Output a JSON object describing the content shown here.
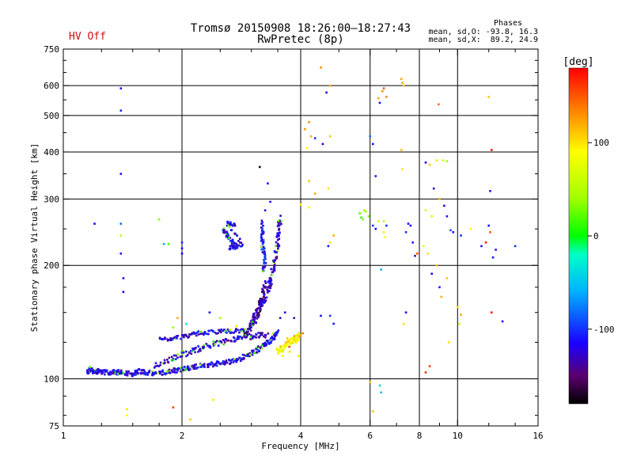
{
  "header": {
    "title_line1": "Tromsø 20150908 18:26:00—18:27:43",
    "title_line2": "RwPretec (8p)",
    "status": "HV Off",
    "status_color": "#d01010",
    "stats_title": "Phases",
    "stats_o": "mean, sd,O: -93.8, 16.3",
    "stats_x": "mean, sd,X:  89.2, 24.9"
  },
  "chart_data": {
    "type": "scatter",
    "xlabel": "Frequency [MHz]",
    "ylabel": "Stationary phase Virtual Height [km]",
    "x_scale": "log",
    "y_scale": "log",
    "xlim": [
      1,
      16
    ],
    "ylim": [
      75,
      750
    ],
    "x_ticks": [
      1,
      2,
      4,
      6,
      8,
      10,
      16
    ],
    "x_tick_labels": [
      "1",
      "2",
      "4",
      "6",
      "8",
      "10",
      "16"
    ],
    "y_ticks": [
      75,
      100,
      200,
      300,
      400,
      500,
      600,
      750
    ],
    "y_tick_labels": [
      "75",
      "100",
      "200",
      "300",
      "400",
      "500",
      "600",
      "750"
    ],
    "x_minor_ticks": [
      1.25,
      1.5,
      1.75,
      2.5,
      3,
      3.5,
      5,
      7,
      9,
      12,
      14
    ],
    "y_minor_ticks": [
      80,
      90,
      125,
      150,
      175,
      250,
      350,
      450,
      550,
      650,
      700
    ],
    "grid": true,
    "colorbar": {
      "label": "[deg]",
      "min": -180,
      "max": 180,
      "ticks": [
        100,
        0,
        -100
      ],
      "tick_labels": [
        "100",
        "0",
        "-100"
      ],
      "stops": [
        {
          "v": -180,
          "c": "#000000"
        },
        {
          "v": -150,
          "c": "#5a0070"
        },
        {
          "v": -115,
          "c": "#1a00ff"
        },
        {
          "v": -60,
          "c": "#00b0ff"
        },
        {
          "v": -20,
          "c": "#00ffc8"
        },
        {
          "v": 0,
          "c": "#00ff00"
        },
        {
          "v": 40,
          "c": "#a0ff00"
        },
        {
          "v": 90,
          "c": "#ffff00"
        },
        {
          "v": 130,
          "c": "#ff9000"
        },
        {
          "v": 180,
          "c": "#ff0000"
        }
      ]
    },
    "traces": [
      {
        "name": "",
        "points": [
          [
            1.15,
            104
          ],
          [
            1.17,
            106
          ],
          [
            1.2,
            104
          ],
          [
            1.23,
            105
          ],
          [
            1.27,
            104
          ],
          [
            1.32,
            104
          ],
          [
            1.37,
            104
          ],
          [
            1.42,
            104
          ],
          [
            1.5,
            103
          ],
          [
            1.55,
            105
          ],
          [
            1.62,
            104
          ],
          [
            1.7,
            103
          ],
          [
            1.8,
            104
          ],
          [
            1.9,
            105
          ],
          [
            2.0,
            106
          ],
          [
            2.1,
            107
          ],
          [
            2.2,
            108
          ],
          [
            2.35,
            109
          ],
          [
            2.5,
            110
          ],
          [
            2.65,
            111
          ],
          [
            2.8,
            113
          ],
          [
            2.95,
            116
          ],
          [
            3.1,
            119
          ],
          [
            3.2,
            122
          ],
          [
            3.3,
            125
          ],
          [
            3.4,
            128
          ],
          [
            3.5,
            134
          ]
        ],
        "phase": -120,
        "spread": 0.03
      },
      {
        "name": "",
        "points": [
          [
            1.7,
            108
          ],
          [
            1.85,
            112
          ],
          [
            2.0,
            116
          ],
          [
            2.15,
            119
          ],
          [
            2.3,
            122
          ],
          [
            2.5,
            125
          ],
          [
            2.7,
            127
          ],
          [
            2.9,
            129
          ],
          [
            3.1,
            130
          ],
          [
            3.3,
            131
          ]
        ],
        "phase": -125,
        "spread": 0.035
      },
      {
        "name": "",
        "points": [
          [
            1.75,
            127
          ],
          [
            1.9,
            128
          ],
          [
            2.05,
            130
          ],
          [
            2.2,
            132
          ],
          [
            2.4,
            133
          ],
          [
            2.6,
            134
          ],
          [
            2.8,
            134
          ],
          [
            3.0,
            135
          ]
        ],
        "phase": -120,
        "spread": 0.025
      },
      {
        "name": "",
        "points": [
          [
            3.0,
            140
          ],
          [
            3.1,
            150
          ],
          [
            3.2,
            160
          ],
          [
            3.3,
            170
          ],
          [
            3.35,
            180
          ],
          [
            3.4,
            195
          ],
          [
            3.45,
            210
          ],
          [
            3.5,
            230
          ],
          [
            3.52,
            250
          ],
          [
            3.55,
            270
          ]
        ],
        "phase": -130,
        "spread": 0.04
      },
      {
        "name": "",
        "points": [
          [
            2.9,
            130
          ],
          [
            3.0,
            138
          ],
          [
            3.1,
            145
          ],
          [
            3.15,
            155
          ],
          [
            3.2,
            165
          ],
          [
            3.25,
            180
          ]
        ],
        "phase": -140,
        "spread": 0.04
      },
      {
        "name": "",
        "points": [
          [
            3.5,
            118
          ],
          [
            3.6,
            120
          ],
          [
            3.7,
            123
          ],
          [
            3.8,
            126
          ],
          [
            3.9,
            128
          ],
          [
            3.95,
            130
          ]
        ],
        "phase": 90,
        "spread": 0.04
      },
      {
        "name": "",
        "points": [
          [
            2.55,
            250
          ],
          [
            2.6,
            240
          ],
          [
            2.7,
            230
          ],
          [
            2.75,
            225
          ],
          [
            2.65,
            222
          ],
          [
            2.85,
            228
          ],
          [
            2.6,
            260
          ],
          [
            2.75,
            255
          ]
        ],
        "phase": -115,
        "spread": 0.03
      },
      {
        "name": "",
        "points": [
          [
            3.2,
            260
          ],
          [
            3.2,
            240
          ],
          [
            3.2,
            225
          ],
          [
            3.25,
            210
          ],
          [
            3.22,
            190
          ]
        ],
        "phase": -110,
        "spread": 0.03
      }
    ],
    "points": [
      [
        1.4,
        590,
        -110
      ],
      [
        1.4,
        515,
        -105
      ],
      [
        1.4,
        350,
        -110
      ],
      [
        1.4,
        258,
        -80
      ],
      [
        1.4,
        215,
        -110
      ],
      [
        1.42,
        185,
        -110
      ],
      [
        1.42,
        170,
        -115
      ],
      [
        1.2,
        258,
        -115
      ],
      [
        1.4,
        240,
        50
      ],
      [
        1.45,
        80,
        90
      ],
      [
        1.45,
        83,
        100
      ],
      [
        1.75,
        265,
        30
      ],
      [
        1.8,
        228,
        -60
      ],
      [
        1.85,
        228,
        20
      ],
      [
        1.9,
        84,
        160
      ],
      [
        2.0,
        230,
        -100
      ],
      [
        2.0,
        222,
        -110
      ],
      [
        2.0,
        215,
        -115
      ],
      [
        1.95,
        145,
        120
      ],
      [
        2.05,
        140,
        -20
      ],
      [
        1.9,
        137,
        40
      ],
      [
        2.4,
        88,
        100
      ],
      [
        2.1,
        78,
        110
      ],
      [
        2.35,
        150,
        -120
      ],
      [
        2.5,
        145,
        40
      ],
      [
        2.75,
        138,
        80
      ],
      [
        3.15,
        365,
        -170
      ],
      [
        3.3,
        330,
        -110
      ],
      [
        3.25,
        280,
        -110
      ],
      [
        3.35,
        295,
        -120
      ],
      [
        3.55,
        145,
        -130
      ],
      [
        3.65,
        150,
        -120
      ],
      [
        3.4,
        132,
        60
      ],
      [
        3.55,
        122,
        100
      ],
      [
        3.7,
        128,
        110
      ],
      [
        3.6,
        115,
        95
      ],
      [
        3.75,
        118,
        100
      ],
      [
        3.9,
        125,
        95
      ],
      [
        3.95,
        115,
        100
      ],
      [
        4.0,
        130,
        130
      ],
      [
        3.85,
        145,
        -140
      ],
      [
        4.05,
        132,
        140
      ],
      [
        4.5,
        147,
        -120
      ],
      [
        4.75,
        147,
        -100
      ],
      [
        4.85,
        140,
        -110
      ],
      [
        4.7,
        225,
        -110
      ],
      [
        4.85,
        240,
        120
      ],
      [
        4.75,
        230,
        100
      ],
      [
        4.5,
        670,
        130
      ],
      [
        4.65,
        575,
        -120
      ],
      [
        4.75,
        600,
        120
      ],
      [
        4.1,
        460,
        130
      ],
      [
        4.2,
        480,
        130
      ],
      [
        4.25,
        440,
        120
      ],
      [
        4.15,
        410,
        90
      ],
      [
        4.35,
        435,
        -100
      ],
      [
        4.55,
        420,
        -120
      ],
      [
        4.75,
        440,
        110
      ],
      [
        4.2,
        335,
        110
      ],
      [
        4.35,
        310,
        120
      ],
      [
        4.7,
        320,
        100
      ],
      [
        4.0,
        290,
        90
      ],
      [
        4.2,
        285,
        95
      ],
      [
        5.65,
        275,
        20
      ],
      [
        5.75,
        265,
        30
      ],
      [
        5.85,
        278,
        40
      ],
      [
        5.95,
        270,
        30
      ],
      [
        5.8,
        280,
        50
      ],
      [
        5.7,
        268,
        10
      ],
      [
        6.0,
        440,
        -80
      ],
      [
        6.1,
        420,
        -110
      ],
      [
        6.2,
        345,
        -110
      ],
      [
        6.3,
        555,
        120
      ],
      [
        6.35,
        540,
        -110
      ],
      [
        6.5,
        590,
        150
      ],
      [
        6.45,
        580,
        130
      ],
      [
        6.6,
        560,
        130
      ],
      [
        6.3,
        262,
        60
      ],
      [
        6.5,
        262,
        50
      ],
      [
        6.6,
        255,
        -100
      ],
      [
        6.5,
        245,
        80
      ],
      [
        6.55,
        238,
        90
      ],
      [
        6.2,
        250,
        -110
      ],
      [
        6.1,
        255,
        -100
      ],
      [
        6.4,
        195,
        -60
      ],
      [
        6.35,
        96,
        -40
      ],
      [
        6.4,
        92,
        -50
      ],
      [
        6.0,
        98,
        110
      ],
      [
        6.1,
        82,
        110
      ],
      [
        7.2,
        625,
        120
      ],
      [
        7.25,
        610,
        120
      ],
      [
        7.3,
        600,
        110
      ],
      [
        7.2,
        405,
        110
      ],
      [
        7.25,
        360,
        100
      ],
      [
        7.5,
        258,
        -110
      ],
      [
        7.6,
        255,
        -120
      ],
      [
        7.4,
        245,
        -100
      ],
      [
        7.7,
        230,
        -110
      ],
      [
        7.8,
        212,
        -130
      ],
      [
        7.9,
        215,
        150
      ],
      [
        7.4,
        150,
        -120
      ],
      [
        7.3,
        140,
        100
      ],
      [
        8.3,
        375,
        -120
      ],
      [
        8.5,
        370,
        110
      ],
      [
        8.7,
        320,
        -130
      ],
      [
        8.85,
        380,
        100
      ],
      [
        9.2,
        380,
        60
      ],
      [
        9.4,
        378,
        40
      ],
      [
        9.0,
        300,
        120
      ],
      [
        9.25,
        288,
        -120
      ],
      [
        9.4,
        270,
        -110
      ],
      [
        9.6,
        248,
        -90
      ],
      [
        8.2,
        225,
        80
      ],
      [
        8.4,
        215,
        100
      ],
      [
        8.6,
        190,
        -120
      ],
      [
        8.85,
        200,
        110
      ],
      [
        9.0,
        175,
        -110
      ],
      [
        9.4,
        185,
        110
      ],
      [
        9.1,
        165,
        120
      ],
      [
        8.5,
        108,
        160
      ],
      [
        8.3,
        104,
        165
      ],
      [
        9.75,
        245,
        -110
      ],
      [
        10.2,
        240,
        -100
      ],
      [
        10.0,
        155,
        100
      ],
      [
        10.2,
        148,
        120
      ],
      [
        10.1,
        140,
        60
      ],
      [
        9.5,
        125,
        100
      ],
      [
        8.95,
        535,
        140
      ],
      [
        8.3,
        280,
        60
      ],
      [
        8.6,
        270,
        70
      ],
      [
        10.8,
        250,
        90
      ],
      [
        12.0,
        560,
        110
      ],
      [
        12.2,
        405,
        170
      ],
      [
        12.1,
        315,
        -110
      ],
      [
        12.0,
        255,
        -110
      ],
      [
        11.8,
        230,
        170
      ],
      [
        12.1,
        245,
        150
      ],
      [
        12.3,
        210,
        -110
      ],
      [
        11.5,
        225,
        -110
      ],
      [
        12.5,
        220,
        -110
      ],
      [
        12.2,
        150,
        170
      ],
      [
        13.0,
        142,
        -110
      ],
      [
        14.0,
        225,
        -100
      ]
    ]
  }
}
